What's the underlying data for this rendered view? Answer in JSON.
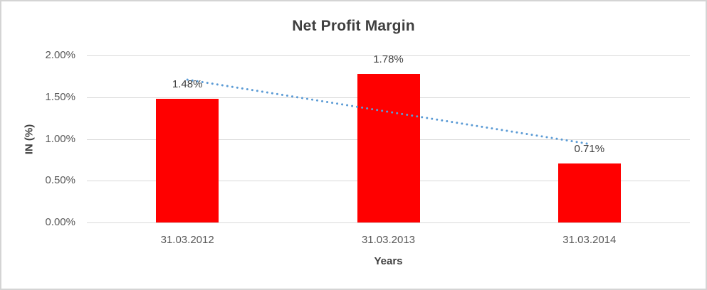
{
  "chart_data": {
    "type": "bar",
    "title": "Net Profit Margin",
    "xlabel": "Years",
    "ylabel": "IN (%)",
    "categories": [
      "31.03.2012",
      "31.03.2013",
      "31.03.2014"
    ],
    "series": [
      {
        "name": "Net Profit Margin",
        "values": [
          1.48,
          1.78,
          0.71
        ]
      }
    ],
    "data_labels": [
      "1.48%",
      "1.78%",
      "0.71%"
    ],
    "ylim": [
      0,
      2.0
    ],
    "yticks": [
      {
        "value": 0.0,
        "label": "0.00%"
      },
      {
        "value": 0.5,
        "label": "0.50%"
      },
      {
        "value": 1.0,
        "label": "1.00%"
      },
      {
        "value": 1.5,
        "label": "1.50%"
      },
      {
        "value": 2.0,
        "label": "2.00%"
      }
    ],
    "grid": true,
    "legend": "none",
    "trendline": {
      "type": "linear",
      "style": "dotted",
      "color": "#5B9BD5",
      "start_value": 1.71,
      "end_value": 0.94
    },
    "colors": {
      "bar": "#FF0000",
      "gridline": "#D9D9D9",
      "title_text": "#3F3F3F",
      "axis_text": "#595959",
      "label_text": "#404040",
      "canvas_border": "#D4D4D4"
    }
  }
}
